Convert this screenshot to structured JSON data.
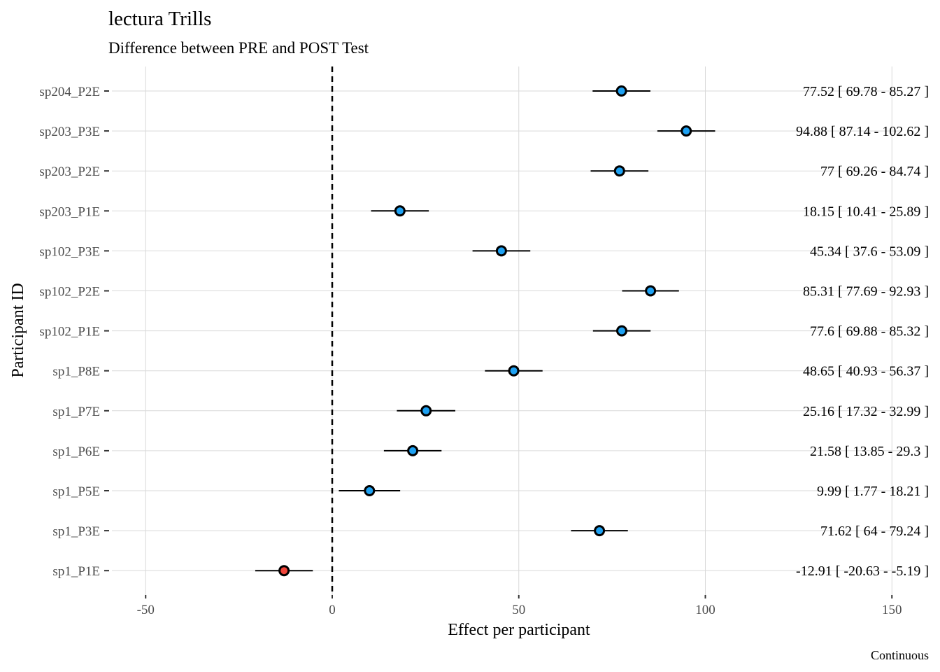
{
  "chart_data": {
    "type": "forest",
    "title": "lectura Trills",
    "subtitle": "Difference between PRE and POST Test",
    "xlabel": "Effect per participant",
    "ylabel": "Participant ID",
    "caption": "Continuous",
    "xlim": [
      -60,
      152
    ],
    "xticks": [
      -50,
      0,
      50,
      100,
      150
    ],
    "xtick_labels": [
      "-50",
      "0",
      "50",
      "100",
      "150"
    ],
    "reference_line": 0,
    "grid": true,
    "colors": {
      "positive": "#1ea1f2",
      "negative": "#f0453a",
      "line": "#000000",
      "grid": "#d9d9d9"
    },
    "participants": [
      {
        "id": "sp204_P2E",
        "estimate": 77.52,
        "lower": 69.78,
        "upper": 85.27,
        "label": "77.52 [ 69.78 - 85.27 ]"
      },
      {
        "id": "sp203_P3E",
        "estimate": 94.88,
        "lower": 87.14,
        "upper": 102.62,
        "label": "94.88 [ 87.14 - 102.62 ]"
      },
      {
        "id": "sp203_P2E",
        "estimate": 77,
        "lower": 69.26,
        "upper": 84.74,
        "label": "77 [ 69.26 - 84.74 ]"
      },
      {
        "id": "sp203_P1E",
        "estimate": 18.15,
        "lower": 10.41,
        "upper": 25.89,
        "label": "18.15 [ 10.41 - 25.89 ]"
      },
      {
        "id": "sp102_P3E",
        "estimate": 45.34,
        "lower": 37.6,
        "upper": 53.09,
        "label": "45.34 [ 37.6 - 53.09 ]"
      },
      {
        "id": "sp102_P2E",
        "estimate": 85.31,
        "lower": 77.69,
        "upper": 92.93,
        "label": "85.31 [ 77.69 - 92.93 ]"
      },
      {
        "id": "sp102_P1E",
        "estimate": 77.6,
        "lower": 69.88,
        "upper": 85.32,
        "label": "77.6 [ 69.88 - 85.32 ]"
      },
      {
        "id": "sp1_P8E",
        "estimate": 48.65,
        "lower": 40.93,
        "upper": 56.37,
        "label": "48.65 [ 40.93 - 56.37 ]"
      },
      {
        "id": "sp1_P7E",
        "estimate": 25.16,
        "lower": 17.32,
        "upper": 32.99,
        "label": "25.16 [ 17.32 - 32.99 ]"
      },
      {
        "id": "sp1_P6E",
        "estimate": 21.58,
        "lower": 13.85,
        "upper": 29.3,
        "label": "21.58 [ 13.85 - 29.3 ]"
      },
      {
        "id": "sp1_P5E",
        "estimate": 9.99,
        "lower": 1.77,
        "upper": 18.21,
        "label": "9.99 [ 1.77 - 18.21 ]"
      },
      {
        "id": "sp1_P3E",
        "estimate": 71.62,
        "lower": 64,
        "upper": 79.24,
        "label": "71.62 [ 64 - 79.24 ]"
      },
      {
        "id": "sp1_P1E",
        "estimate": -12.91,
        "lower": -20.63,
        "upper": -5.19,
        "label": "-12.91 [ -20.63 - -5.19 ]"
      }
    ]
  }
}
